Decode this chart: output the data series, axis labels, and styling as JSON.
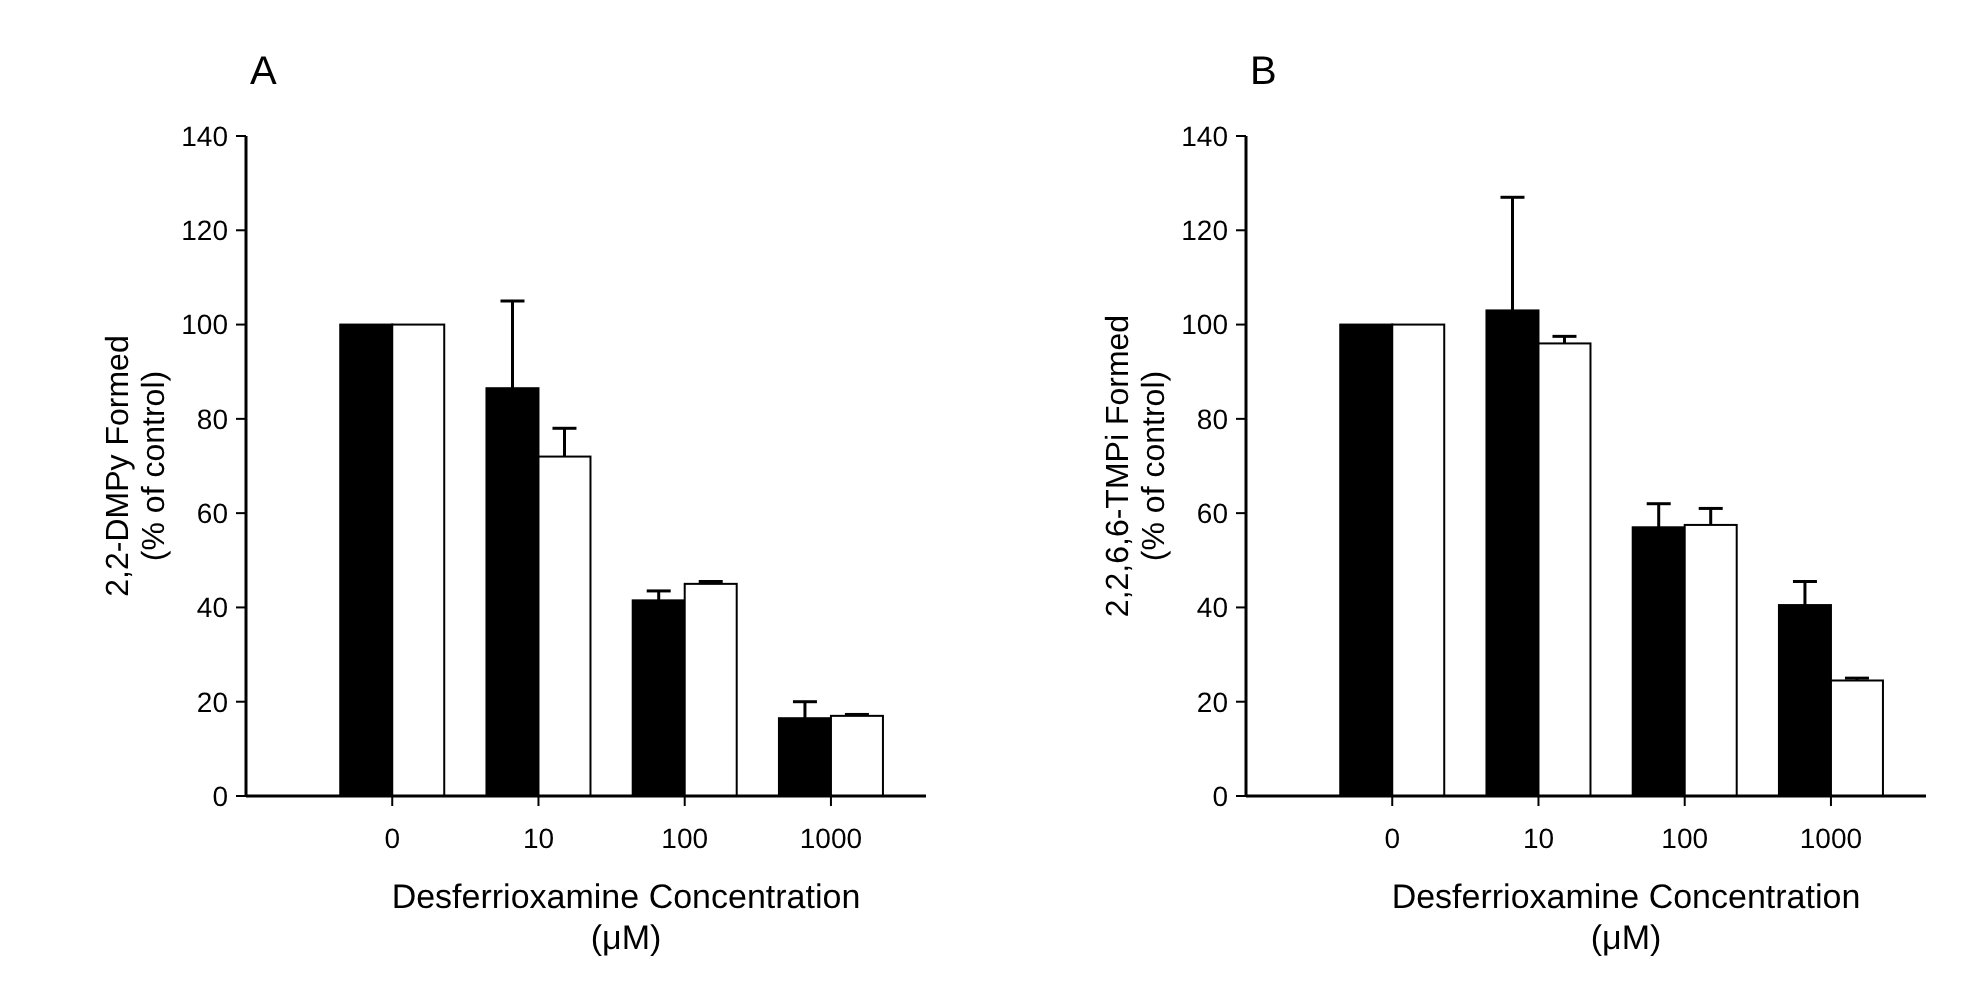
{
  "chart_data": [
    {
      "type": "bar",
      "title": "A",
      "xlabel": "Desferrioxamine Concentration\n(μM)",
      "ylabel": "2,2-DMPy Formed\n(% of control)",
      "categories": [
        "0",
        "10",
        "100",
        "1000"
      ],
      "ylim": [
        0,
        140
      ],
      "yticks": [
        0,
        20,
        40,
        60,
        80,
        100,
        120,
        140
      ],
      "grid": false,
      "series": [
        {
          "color": "#000000",
          "values": [
            100,
            86.5,
            41.5,
            16.5
          ],
          "errors": [
            null,
            [
              86.5,
              105
            ],
            [
              41.5,
              43.5
            ],
            [
              16.5,
              20
            ]
          ]
        },
        {
          "color": "#ffffff",
          "values": [
            100,
            72,
            45,
            17
          ],
          "errors": [
            null,
            [
              72,
              78
            ],
            [
              45,
              45.5
            ],
            [
              17,
              17.3
            ]
          ]
        }
      ]
    },
    {
      "type": "bar",
      "title": "B",
      "xlabel": "Desferrioxamine Concentration\n(μM)",
      "ylabel": "2,2,6,6-TMPi Formed\n(% of control)",
      "categories": [
        "0",
        "10",
        "100",
        "1000"
      ],
      "ylim": [
        0,
        140
      ],
      "yticks": [
        0,
        20,
        40,
        60,
        80,
        100,
        120,
        140
      ],
      "grid": false,
      "series": [
        {
          "color": "#000000",
          "values": [
            100,
            103,
            57,
            40.5
          ],
          "errors": [
            null,
            [
              103,
              127
            ],
            [
              57,
              62
            ],
            [
              40.5,
              45.5
            ]
          ]
        },
        {
          "color": "#ffffff",
          "values": [
            100,
            96,
            57.5,
            24.5
          ],
          "errors": [
            null,
            [
              96,
              97.5
            ],
            [
              57.5,
              61
            ],
            [
              24.5,
              25
            ]
          ]
        }
      ]
    }
  ]
}
